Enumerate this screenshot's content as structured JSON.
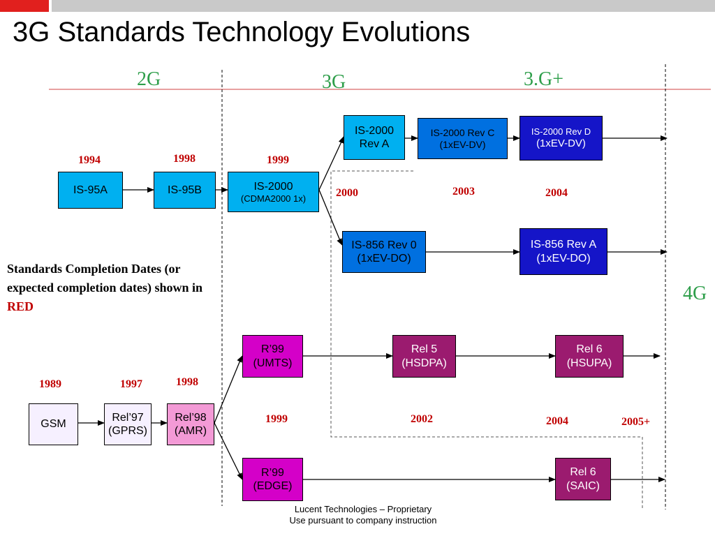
{
  "title": "3G Standards Technology Evolutions",
  "eras": {
    "g2": "2G",
    "g3": "3G",
    "g3plus": "3.G+",
    "g4": "4G"
  },
  "cdma": {
    "is95a": "IS-95A",
    "is95b": "IS-95B",
    "is2000": {
      "line1": "IS-2000",
      "line2": "(CDMA2000 1x)"
    },
    "is2000_reva": {
      "line1": "IS-2000",
      "line2": "Rev A"
    },
    "is2000_revc": {
      "line1": "IS-2000 Rev C",
      "line2": "(1xEV-DV)"
    },
    "is2000_revd": {
      "line1": "IS-2000 Rev D",
      "line2": "(1xEV-DV)"
    },
    "is856_rev0": {
      "line1": "IS-856 Rev 0",
      "line2": "(1xEV-DO)"
    },
    "is856_reva": {
      "line1": "IS-856 Rev A",
      "line2": "(1xEV-DO)"
    },
    "years": {
      "y1994": "1994",
      "y1998": "1998",
      "y1999": "1999",
      "y2000": "2000",
      "y2003": "2003",
      "y2004": "2004"
    }
  },
  "gsm": {
    "gsm": "GSM",
    "rel97": {
      "line1": "Rel’97",
      "line2": "(GPRS)"
    },
    "rel98": {
      "line1": "Rel’98",
      "line2": "(AMR)"
    },
    "r99_umts": {
      "line1": "R’99",
      "line2": "(UMTS)"
    },
    "r99_edge": {
      "line1": "R’99",
      "line2": "(EDGE)"
    },
    "rel5": {
      "line1": "Rel 5",
      "line2": "(HSDPA)"
    },
    "rel6_hsupa": {
      "line1": "Rel 6",
      "line2": "(HSUPA)"
    },
    "rel6_saic": {
      "line1": "Rel 6",
      "line2": "(SAIC)"
    },
    "years": {
      "y1989": "1989",
      "y1997": "1997",
      "y1998": "1998",
      "y1999": "1999",
      "y2002": "2002",
      "y2004": "2004",
      "y2005plus": "2005+"
    }
  },
  "note": {
    "text": "Standards Completion Dates (or expected completion dates) shown in",
    "highlight": "RED"
  },
  "footer": {
    "line1": "Lucent Technologies – Proprietary",
    "line2": "Use pursuant to company instruction"
  },
  "colors": {
    "title_green": "#2e9e4a",
    "year_red": "#c00000",
    "cyan": "#00b0f0",
    "blue_mid": "#0070e0",
    "blue_dark": "#1515c8",
    "magenta": "#d400c8",
    "purple": "#9b1b6f",
    "pink": "#f39ad6",
    "light_lavender": "#f6f0ff"
  }
}
